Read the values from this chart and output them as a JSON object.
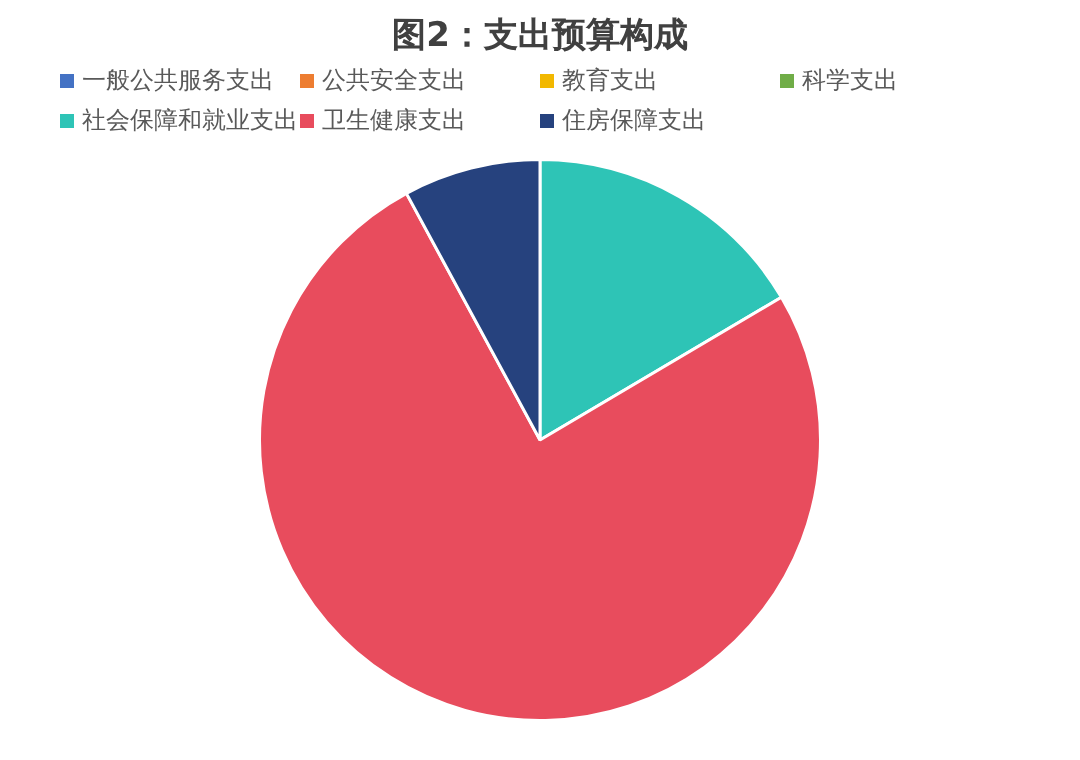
{
  "chart_data": {
    "type": "pie",
    "title": "图2：支出预算构成",
    "categories": [
      "一般公共服务支出",
      "公共安全支出",
      "教育支出",
      "科学支出",
      "社会保障和就业支出",
      "卫生健康支出",
      "住房保障支出"
    ],
    "values": [
      0,
      0,
      0,
      0,
      16.5,
      75.6,
      7.9
    ],
    "colors": [
      "#4472c4",
      "#ed7d31",
      "#f2b800",
      "#70ad47",
      "#2ec4b6",
      "#e84c5d",
      "#26427e"
    ],
    "legend": "top"
  }
}
